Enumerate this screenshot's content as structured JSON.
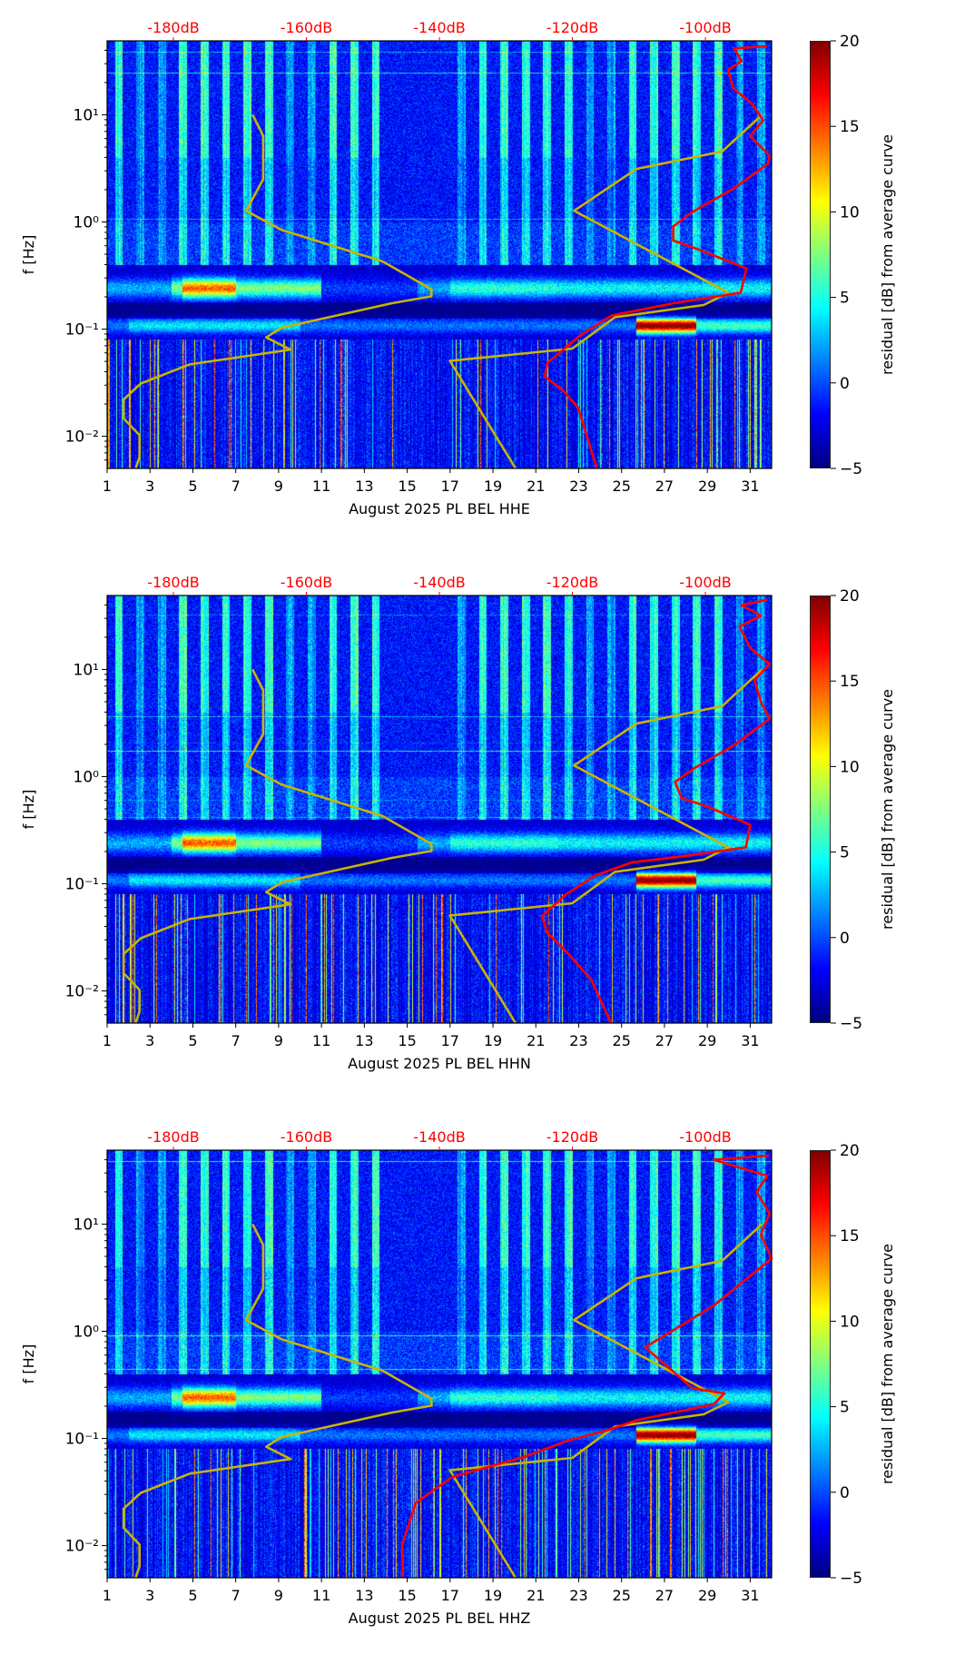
{
  "chart_data": [
    {
      "type": "heatmap",
      "xlabel": "August 2025 PL BEL  HHE",
      "ylabel": "f [Hz]",
      "xlim": [
        1,
        32
      ],
      "ylim_log10": [
        -2.3,
        1.69
      ],
      "xticks": [
        "1",
        "3",
        "5",
        "7",
        "9",
        "11",
        "13",
        "15",
        "17",
        "19",
        "21",
        "23",
        "25",
        "27",
        "29",
        "31"
      ],
      "yticks": [
        {
          "value": 1,
          "label": "10¹"
        },
        {
          "value": 0,
          "label": "10⁰"
        },
        {
          "value": -1,
          "label": "10⁻¹"
        },
        {
          "value": -2,
          "label": "10⁻²"
        }
      ],
      "top_axis": {
        "color": "#ff0000",
        "ticks": [
          "-180dB",
          "-160dB",
          "-140dB",
          "-120dB",
          "-100dB"
        ],
        "values": [
          -180,
          -160,
          -140,
          -120,
          -100
        ]
      },
      "colorbar": {
        "label": "residual [dB] from average curve",
        "range": [
          -5,
          20
        ],
        "ticks": [
          "20",
          "15",
          "10",
          "5",
          "0",
          "−5"
        ],
        "colormap": "jet"
      },
      "seed": 11,
      "series": [
        {
          "name": "low-noise-model",
          "color": "#c8b400",
          "points": [
            [
              7.79,
              1.0
            ],
            [
              8.28,
              0.805
            ],
            [
              8.28,
              0.397
            ],
            [
              7.48,
              0.104
            ],
            [
              9.14,
              -0.075
            ],
            [
              13.85,
              -0.368
            ],
            [
              16.13,
              -0.629
            ],
            [
              16.13,
              -0.694
            ],
            [
              14.27,
              -0.759
            ],
            [
              9.14,
              -0.987
            ],
            [
              8.42,
              -1.078
            ],
            [
              9.56,
              -1.192
            ],
            [
              4.85,
              -1.329
            ],
            [
              2.57,
              -1.508
            ],
            [
              1.77,
              -1.655
            ],
            [
              1.77,
              -1.834
            ],
            [
              2.51,
              -1.99
            ],
            [
              2.51,
              -2.192
            ],
            [
              2.34,
              -2.296
            ]
          ]
        },
        {
          "name": "high-noise-model",
          "color": "#c8b400",
          "points": [
            [
              20.04,
              -2.296
            ],
            [
              16.99,
              -1.296
            ],
            [
              22.7,
              -1.182
            ],
            [
              24.69,
              -0.889
            ],
            [
              28.83,
              -0.775
            ],
            [
              29.98,
              -0.661
            ],
            [
              22.78,
              0.104
            ],
            [
              25.69,
              0.495
            ],
            [
              29.69,
              0.658
            ],
            [
              31.55,
              1.0
            ]
          ]
        },
        {
          "name": "average-curve",
          "color": "#ff0000",
          "points": [
            [
              23.84,
              -2.296
            ],
            [
              22.98,
              -1.736
            ],
            [
              22.27,
              -1.573
            ],
            [
              21.41,
              -1.443
            ],
            [
              21.55,
              -1.313
            ],
            [
              23.12,
              -1.052
            ],
            [
              24.55,
              -0.873
            ],
            [
              27.41,
              -0.759
            ],
            [
              30.55,
              -0.661
            ],
            [
              30.83,
              -0.433
            ],
            [
              28.55,
              -0.254
            ],
            [
              27.41,
              -0.173
            ],
            [
              27.41,
              -0.042
            ],
            [
              28.26,
              0.088
            ],
            [
              30.26,
              0.316
            ],
            [
              31.83,
              0.544
            ],
            [
              31.9,
              0.62
            ],
            [
              31.0,
              0.8
            ],
            [
              31.6,
              0.95
            ],
            [
              31.1,
              1.1
            ],
            [
              30.2,
              1.25
            ],
            [
              29.97,
              1.42
            ],
            [
              30.6,
              1.5
            ],
            [
              30.26,
              1.62
            ],
            [
              31.8,
              1.64
            ]
          ]
        }
      ]
    },
    {
      "type": "heatmap",
      "xlabel": "August 2025 PL BEL  HHN",
      "ylabel": "f [Hz]",
      "xlim": [
        1,
        32
      ],
      "ylim_log10": [
        -2.3,
        1.69
      ],
      "xticks": [
        "1",
        "3",
        "5",
        "7",
        "9",
        "11",
        "13",
        "15",
        "17",
        "19",
        "21",
        "23",
        "25",
        "27",
        "29",
        "31"
      ],
      "yticks": [
        {
          "value": 1,
          "label": "10¹"
        },
        {
          "value": 0,
          "label": "10⁰"
        },
        {
          "value": -1,
          "label": "10⁻¹"
        },
        {
          "value": -2,
          "label": "10⁻²"
        }
      ],
      "top_axis": {
        "color": "#ff0000",
        "ticks": [
          "-180dB",
          "-160dB",
          "-140dB",
          "-120dB",
          "-100dB"
        ],
        "values": [
          -180,
          -160,
          -140,
          -120,
          -100
        ]
      },
      "colorbar": {
        "label": "residual [dB] from average curve",
        "range": [
          -5,
          20
        ],
        "ticks": [
          "20",
          "15",
          "10",
          "5",
          "0",
          "−5"
        ],
        "colormap": "jet"
      },
      "seed": 23,
      "series": [
        {
          "name": "low-noise-model",
          "color": "#c8b400",
          "points": [
            [
              7.79,
              1.0
            ],
            [
              8.28,
              0.805
            ],
            [
              8.28,
              0.397
            ],
            [
              7.48,
              0.104
            ],
            [
              9.14,
              -0.075
            ],
            [
              13.85,
              -0.368
            ],
            [
              16.13,
              -0.629
            ],
            [
              16.13,
              -0.694
            ],
            [
              14.27,
              -0.759
            ],
            [
              9.14,
              -0.987
            ],
            [
              8.42,
              -1.078
            ],
            [
              9.56,
              -1.192
            ],
            [
              4.85,
              -1.329
            ],
            [
              2.57,
              -1.508
            ],
            [
              1.77,
              -1.655
            ],
            [
              1.77,
              -1.834
            ],
            [
              2.51,
              -1.99
            ],
            [
              2.51,
              -2.192
            ],
            [
              2.34,
              -2.296
            ]
          ]
        },
        {
          "name": "high-noise-model",
          "color": "#c8b400",
          "points": [
            [
              20.04,
              -2.296
            ],
            [
              16.99,
              -1.296
            ],
            [
              22.7,
              -1.182
            ],
            [
              24.69,
              -0.889
            ],
            [
              28.83,
              -0.775
            ],
            [
              29.98,
              -0.661
            ],
            [
              22.78,
              0.104
            ],
            [
              25.69,
              0.495
            ],
            [
              29.69,
              0.658
            ],
            [
              31.55,
              1.0
            ]
          ]
        },
        {
          "name": "average-curve",
          "color": "#ff0000",
          "points": [
            [
              24.5,
              -2.296
            ],
            [
              23.6,
              -1.9
            ],
            [
              22.5,
              -1.65
            ],
            [
              21.5,
              -1.45
            ],
            [
              21.3,
              -1.3
            ],
            [
              22.4,
              -1.1
            ],
            [
              23.8,
              -0.92
            ],
            [
              25.5,
              -0.8
            ],
            [
              28.0,
              -0.74
            ],
            [
              30.8,
              -0.66
            ],
            [
              31.0,
              -0.45
            ],
            [
              29.0,
              -0.28
            ],
            [
              27.8,
              -0.2
            ],
            [
              27.5,
              -0.05
            ],
            [
              28.4,
              0.08
            ],
            [
              30.3,
              0.3
            ],
            [
              31.9,
              0.54
            ],
            [
              31.5,
              0.7
            ],
            [
              31.2,
              0.9
            ],
            [
              31.9,
              1.05
            ],
            [
              31.0,
              1.2
            ],
            [
              30.5,
              1.4
            ],
            [
              31.5,
              1.5
            ],
            [
              30.6,
              1.6
            ],
            [
              31.8,
              1.65
            ]
          ]
        }
      ]
    },
    {
      "type": "heatmap",
      "xlabel": "August 2025 PL BEL  HHZ",
      "ylabel": "f [Hz]",
      "xlim": [
        1,
        32
      ],
      "ylim_log10": [
        -2.3,
        1.69
      ],
      "xticks": [
        "1",
        "3",
        "5",
        "7",
        "9",
        "11",
        "13",
        "15",
        "17",
        "19",
        "21",
        "23",
        "25",
        "27",
        "29",
        "31"
      ],
      "yticks": [
        {
          "value": 1,
          "label": "10¹"
        },
        {
          "value": 0,
          "label": "10⁰"
        },
        {
          "value": -1,
          "label": "10⁻¹"
        },
        {
          "value": -2,
          "label": "10⁻²"
        }
      ],
      "top_axis": {
        "color": "#ff0000",
        "ticks": [
          "-180dB",
          "-160dB",
          "-140dB",
          "-120dB",
          "-100dB"
        ],
        "values": [
          -180,
          -160,
          -140,
          -120,
          -100
        ]
      },
      "colorbar": {
        "label": "residual [dB] from average curve",
        "range": [
          -5,
          20
        ],
        "ticks": [
          "20",
          "15",
          "10",
          "5",
          "0",
          "−5"
        ],
        "colormap": "jet"
      },
      "seed": 37,
      "series": [
        {
          "name": "low-noise-model",
          "color": "#c8b400",
          "points": [
            [
              7.79,
              1.0
            ],
            [
              8.28,
              0.805
            ],
            [
              8.28,
              0.397
            ],
            [
              7.48,
              0.104
            ],
            [
              9.14,
              -0.075
            ],
            [
              13.85,
              -0.368
            ],
            [
              16.13,
              -0.629
            ],
            [
              16.13,
              -0.694
            ],
            [
              14.27,
              -0.759
            ],
            [
              9.14,
              -0.987
            ],
            [
              8.42,
              -1.078
            ],
            [
              9.56,
              -1.192
            ],
            [
              4.85,
              -1.329
            ],
            [
              2.57,
              -1.508
            ],
            [
              1.77,
              -1.655
            ],
            [
              1.77,
              -1.834
            ],
            [
              2.51,
              -1.99
            ],
            [
              2.51,
              -2.192
            ],
            [
              2.34,
              -2.296
            ]
          ]
        },
        {
          "name": "high-noise-model",
          "color": "#c8b400",
          "points": [
            [
              20.04,
              -2.296
            ],
            [
              16.99,
              -1.296
            ],
            [
              22.7,
              -1.182
            ],
            [
              24.69,
              -0.889
            ],
            [
              28.83,
              -0.775
            ],
            [
              29.98,
              -0.661
            ],
            [
              22.78,
              0.104
            ],
            [
              25.69,
              0.495
            ],
            [
              29.69,
              0.658
            ],
            [
              31.55,
              1.0
            ]
          ]
        },
        {
          "name": "average-curve",
          "color": "#ff0000",
          "points": [
            [
              14.8,
              -2.29
            ],
            [
              14.77,
              -1.99
            ],
            [
              15.4,
              -1.6
            ],
            [
              17.1,
              -1.36
            ],
            [
              20.5,
              -1.17
            ],
            [
              22.5,
              -1.02
            ],
            [
              24.4,
              -0.92
            ],
            [
              25.7,
              -0.83
            ],
            [
              29.3,
              -0.68
            ],
            [
              29.8,
              -0.58
            ],
            [
              28.3,
              -0.53
            ],
            [
              26.1,
              -0.15
            ],
            [
              29.3,
              0.24
            ],
            [
              32.0,
              0.68
            ],
            [
              31.5,
              0.9
            ],
            [
              31.9,
              1.1
            ],
            [
              31.3,
              1.3
            ],
            [
              31.8,
              1.45
            ],
            [
              29.3,
              1.6
            ],
            [
              31.9,
              1.64
            ]
          ]
        }
      ]
    }
  ]
}
